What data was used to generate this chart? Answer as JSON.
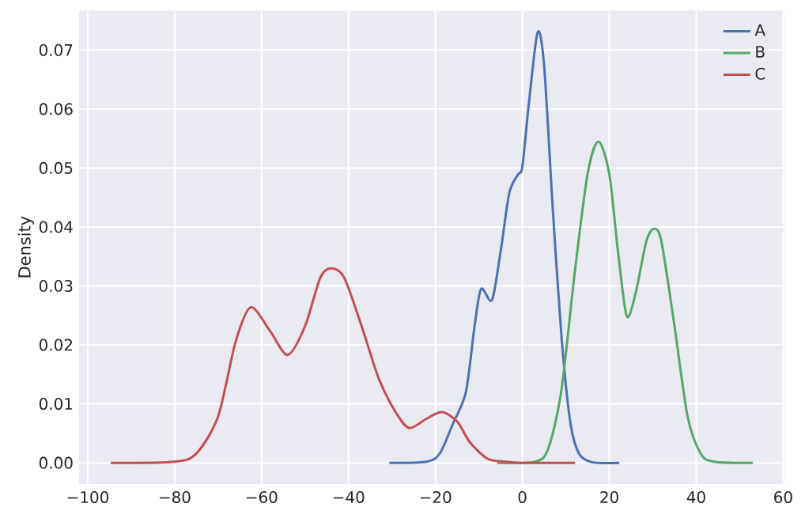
{
  "chart_data": {
    "type": "line",
    "ylabel": "Density",
    "xlim": [
      -102,
      60.3
    ],
    "ylim": [
      -0.0036,
      0.0767
    ],
    "xticks": [
      {
        "value": -100,
        "label": "−100"
      },
      {
        "value": -80,
        "label": "−80"
      },
      {
        "value": -60,
        "label": "−60"
      },
      {
        "value": -40,
        "label": "−40"
      },
      {
        "value": -20,
        "label": "−20"
      },
      0,
      20,
      40,
      60
    ],
    "yticks": [
      {
        "value": 0,
        "label": "0.00"
      },
      {
        "value": 0.01,
        "label": "0.01"
      },
      {
        "value": 0.02,
        "label": "0.02"
      },
      {
        "value": 0.03,
        "label": "0.03"
      },
      {
        "value": 0.04,
        "label": "0.04"
      },
      {
        "value": 0.05,
        "label": "0.05"
      },
      {
        "value": 0.06,
        "label": "0.06"
      },
      {
        "value": 0.07,
        "label": "0.07"
      }
    ],
    "grid": true,
    "legend": "top right",
    "marker": "none",
    "line_style": "solid",
    "series": [
      {
        "name": "A",
        "color": "#4c72b0",
        "x": [
          -30.6,
          -22,
          -19,
          -16,
          -13,
          -11,
          -9.5,
          -7,
          -5,
          -3,
          -1,
          0,
          1.5,
          3.5,
          5,
          7,
          9,
          11,
          13,
          16,
          22.3
        ],
        "values": [
          0,
          0.0002,
          0.0016,
          0.0066,
          0.012,
          0.0232,
          0.0295,
          0.0276,
          0.0359,
          0.0458,
          0.0489,
          0.0503,
          0.061,
          0.073,
          0.0674,
          0.043,
          0.0214,
          0.007,
          0.0016,
          0.0001,
          0
        ]
      },
      {
        "name": "B",
        "color": "#55a868",
        "x": [
          -5.8,
          3,
          6,
          9,
          12,
          15,
          17.5,
          20,
          22,
          24,
          26,
          28.5,
          30.3,
          32,
          35,
          38,
          41,
          44,
          53
        ],
        "values": [
          0,
          0.0002,
          0.0025,
          0.0124,
          0.032,
          0.049,
          0.0545,
          0.049,
          0.0358,
          0.0249,
          0.0286,
          0.0375,
          0.0397,
          0.0375,
          0.0232,
          0.0079,
          0.0016,
          0.0002,
          0
        ]
      },
      {
        "name": "C",
        "color": "#c44e52",
        "x": [
          -94.7,
          -80,
          -75,
          -70,
          -66,
          -62.5,
          -58,
          -54,
          -50,
          -46.5,
          -44,
          -41,
          -37,
          -33,
          -29,
          -26,
          -22,
          -18.5,
          -15,
          -12,
          -8,
          -4,
          0,
          12.1
        ],
        "values": [
          0,
          0.0002,
          0.0016,
          0.0079,
          0.0205,
          0.0264,
          0.0223,
          0.0183,
          0.0232,
          0.0314,
          0.033,
          0.0314,
          0.0232,
          0.0142,
          0.0084,
          0.0059,
          0.0075,
          0.0086,
          0.007,
          0.0034,
          0.0007,
          0.0002,
          0,
          0
        ]
      }
    ]
  }
}
